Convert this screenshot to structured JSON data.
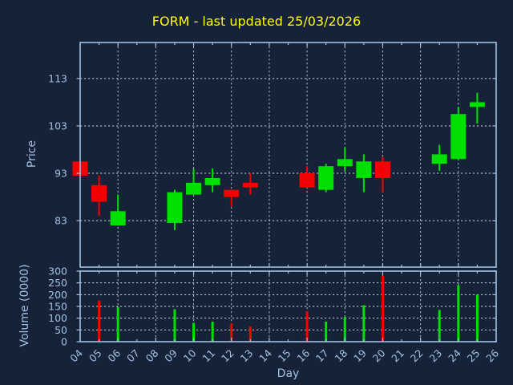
{
  "title": {
    "text": "FORM - last updated 25/03/2026"
  },
  "colors": {
    "background": "#152238",
    "frame": "#a3c1e1",
    "tick_label": "#a3c1e1",
    "axis_label": "#a3c1e1",
    "title": "#ffff00",
    "grid_horizontal": "#ccd2da",
    "grid_vertical": "#aebdd4",
    "up": "#00e000",
    "down": "#f50000"
  },
  "price_axis": {
    "label": "Price",
    "tick_labels": [
      "83",
      "93",
      "103",
      "113"
    ],
    "tick_values": [
      83,
      93,
      103,
      113
    ],
    "ylim": [
      73.2,
      120.6
    ]
  },
  "volume_axis": {
    "label": "Volume (0000)",
    "tick_labels": [
      "0",
      "50",
      "100",
      "150",
      "200",
      "250",
      "300"
    ],
    "tick_values": [
      0,
      50,
      100,
      150,
      200,
      250,
      300
    ],
    "ylim": [
      0,
      300
    ]
  },
  "x_axis": {
    "label": "Day",
    "tick_labels": [
      "04",
      "05",
      "06",
      "07",
      "08",
      "09",
      "10",
      "11",
      "12",
      "13",
      "14",
      "15",
      "16",
      "17",
      "18",
      "19",
      "20",
      "21",
      "22",
      "23",
      "24",
      "25",
      "26"
    ],
    "tick_values": [
      4,
      5,
      6,
      7,
      8,
      9,
      10,
      11,
      12,
      13,
      14,
      15,
      16,
      17,
      18,
      19,
      20,
      21,
      22,
      23,
      24,
      25,
      26
    ],
    "xlim": [
      4,
      26
    ]
  },
  "chart_data": {
    "type": "candlestick",
    "title": "FORM - last updated 25/03/2026",
    "xlabel": "Day",
    "ylabel": "Price",
    "ylabel2": "Volume (0000)",
    "price_ylim": [
      73.2,
      120.6
    ],
    "volume_ylim": [
      0,
      300
    ],
    "grid": "dashed, horizontal at price 83/93/103/113 and volume 50-250 step 50, vertical every 2 days",
    "legend_position": "none",
    "candles": [
      {
        "day": 4,
        "open": 95.5,
        "high": 95.5,
        "low": 92.5,
        "close": 92.5,
        "volume": 0
      },
      {
        "day": 5,
        "open": 90.5,
        "high": 92.5,
        "low": 84.0,
        "close": 87.0,
        "volume": 175
      },
      {
        "day": 6,
        "open": 82.0,
        "high": 88.5,
        "low": 82.0,
        "close": 85.0,
        "volume": 148
      },
      {
        "day": 9,
        "open": 82.5,
        "high": 89.5,
        "low": 81.0,
        "close": 89.0,
        "volume": 138
      },
      {
        "day": 10,
        "open": 88.5,
        "high": 94.0,
        "low": 88.5,
        "close": 91.0,
        "volume": 80
      },
      {
        "day": 11,
        "open": 90.5,
        "high": 94.0,
        "low": 89.0,
        "close": 92.0,
        "volume": 85
      },
      {
        "day": 12,
        "open": 89.5,
        "high": 89.5,
        "low": 86.0,
        "close": 88.0,
        "volume": 78
      },
      {
        "day": 13,
        "open": 91.0,
        "high": 93.0,
        "low": 88.5,
        "close": 90.0,
        "volume": 65
      },
      {
        "day": 16,
        "open": 93.0,
        "high": 94.5,
        "low": 90.0,
        "close": 90.0,
        "volume": 130
      },
      {
        "day": 17,
        "open": 89.5,
        "high": 95.0,
        "low": 89.0,
        "close": 94.5,
        "volume": 85
      },
      {
        "day": 18,
        "open": 94.5,
        "high": 98.5,
        "low": 93.5,
        "close": 96.0,
        "volume": 105
      },
      {
        "day": 19,
        "open": 92.0,
        "high": 97.0,
        "low": 89.0,
        "close": 95.5,
        "volume": 155
      },
      {
        "day": 20,
        "open": 95.5,
        "high": 96.5,
        "low": 89.0,
        "close": 92.0,
        "volume": 280
      },
      {
        "day": 23,
        "open": 95.0,
        "high": 99.0,
        "low": 93.5,
        "close": 97.0,
        "volume": 135
      },
      {
        "day": 24,
        "open": 96.0,
        "high": 107.0,
        "low": 96.0,
        "close": 105.5,
        "volume": 240
      },
      {
        "day": 25,
        "open": 107.0,
        "high": 110.0,
        "low": 103.5,
        "close": 108.0,
        "volume": 200
      }
    ]
  }
}
